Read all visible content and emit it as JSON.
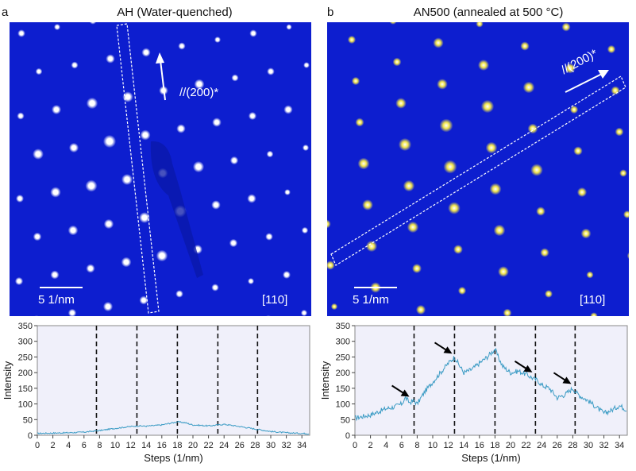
{
  "panels": [
    {
      "letter": "a",
      "title": "AH (Water-quenched)",
      "direction_label": "//(200)*",
      "scale_label": "5 1/nm",
      "zone_axis": "[110]"
    },
    {
      "letter": "b",
      "title": "AN500 (annealed at 500 °C)",
      "direction_label": "//(200)*",
      "scale_label": "5 1/nm",
      "zone_axis": "[110]"
    }
  ],
  "colors": {
    "pattern_background": "#0d1ecf",
    "spot": "#ffffff",
    "spot_b": "#f2e54a",
    "profile_line": "#3a9bc4",
    "plot_background": "#f0f0fa"
  },
  "chart_data": [
    {
      "type": "line",
      "panel": "a",
      "xlabel": "Steps (1/nm)",
      "ylabel": "Intensity",
      "xlim": [
        0,
        35
      ],
      "ylim": [
        0,
        350
      ],
      "xticks": [
        0,
        2,
        4,
        6,
        8,
        10,
        12,
        14,
        16,
        18,
        20,
        22,
        24,
        26,
        28,
        30,
        32,
        34
      ],
      "yticks": [
        0,
        50,
        100,
        150,
        200,
        250,
        300,
        350
      ],
      "dashed_lines_x": [
        7.6,
        12.8,
        18.0,
        23.2,
        28.3
      ],
      "series": [
        {
          "x": [
            0,
            2,
            4,
            6,
            8,
            10,
            12,
            13,
            14,
            16,
            17,
            18,
            19,
            20,
            22,
            24,
            26,
            28,
            30,
            32,
            35
          ],
          "y": [
            6,
            7,
            8,
            10,
            15,
            22,
            28,
            30,
            29,
            33,
            38,
            43,
            40,
            33,
            30,
            35,
            28,
            20,
            12,
            8,
            5
          ]
        }
      ]
    },
    {
      "type": "line",
      "panel": "b",
      "xlabel": "Steps (1/nm)",
      "ylabel": "Intensity",
      "xlim": [
        0,
        35
      ],
      "ylim": [
        0,
        350
      ],
      "xticks": [
        0,
        2,
        4,
        6,
        8,
        10,
        12,
        14,
        16,
        18,
        20,
        22,
        24,
        26,
        28,
        30,
        32,
        34
      ],
      "yticks": [
        0,
        50,
        100,
        150,
        200,
        250,
        300,
        350
      ],
      "dashed_lines_x": [
        7.6,
        12.8,
        18.0,
        23.2,
        28.3
      ],
      "arrows_at_x": [
        7.0,
        12.5,
        22.8,
        27.8
      ],
      "series": [
        {
          "x": [
            0,
            1,
            2,
            3,
            4,
            5,
            6,
            6.5,
            7,
            7.6,
            8,
            9,
            10,
            11,
            12,
            12.8,
            13.5,
            14,
            15,
            16,
            17,
            18,
            18.5,
            19,
            20,
            21,
            22,
            23,
            23.5,
            24,
            25,
            26,
            27,
            28,
            28.5,
            29,
            30,
            31,
            32,
            33,
            34,
            35
          ],
          "y": [
            55,
            60,
            65,
            75,
            85,
            90,
            100,
            120,
            105,
            110,
            100,
            140,
            170,
            200,
            230,
            250,
            220,
            200,
            210,
            230,
            250,
            275,
            245,
            220,
            200,
            205,
            195,
            180,
            175,
            160,
            150,
            120,
            130,
            150,
            135,
            125,
            110,
            90,
            70,
            80,
            95,
            80
          ]
        }
      ]
    }
  ]
}
